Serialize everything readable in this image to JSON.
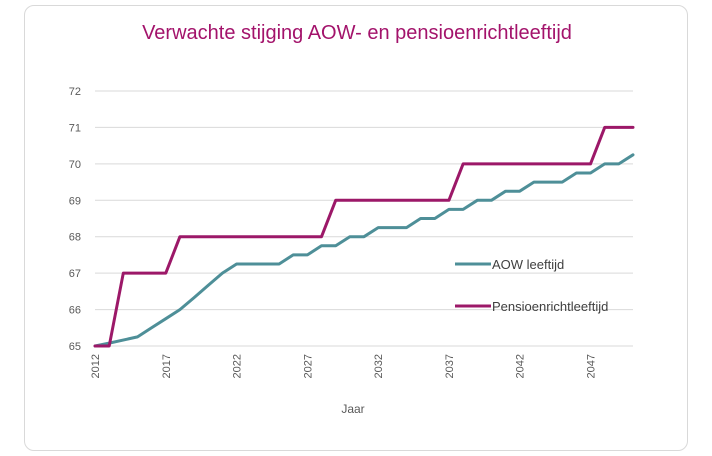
{
  "chart_data": {
    "type": "line",
    "title": "Verwachte stijging  AOW- en pensioenrichtleeftijd",
    "xlabel": "Jaar",
    "ylabel": "",
    "xlim": [
      2012,
      2050
    ],
    "ylim": [
      65,
      72
    ],
    "x_ticks": [
      "2012",
      "2017",
      "2022",
      "2027",
      "2032",
      "2037",
      "2042",
      "2047"
    ],
    "y_ticks": [
      "65",
      "66",
      "67",
      "68",
      "69",
      "70",
      "71",
      "72"
    ],
    "grid": true,
    "legend_position": "right-center",
    "series": [
      {
        "name": "AOW leeftijd",
        "color": "#4e8f98",
        "shape": "linear",
        "points": [
          [
            2012,
            65.0
          ],
          [
            2013,
            65.08
          ],
          [
            2015,
            65.25
          ],
          [
            2016,
            65.5
          ],
          [
            2017,
            65.75
          ],
          [
            2018,
            66.0
          ],
          [
            2019,
            66.33
          ],
          [
            2020,
            66.67
          ],
          [
            2021,
            67.0
          ],
          [
            2022,
            67.25
          ],
          [
            2025,
            67.25
          ],
          [
            2026,
            67.5
          ],
          [
            2027,
            67.5
          ],
          [
            2028,
            67.75
          ],
          [
            2029,
            67.75
          ],
          [
            2030,
            68.0
          ],
          [
            2031,
            68.0
          ],
          [
            2032,
            68.25
          ],
          [
            2034,
            68.25
          ],
          [
            2035,
            68.5
          ],
          [
            2036,
            68.5
          ],
          [
            2037,
            68.75
          ],
          [
            2038,
            68.75
          ],
          [
            2039,
            69.0
          ],
          [
            2040,
            69.0
          ],
          [
            2041,
            69.25
          ],
          [
            2042,
            69.25
          ],
          [
            2043,
            69.5
          ],
          [
            2045,
            69.5
          ],
          [
            2046,
            69.75
          ],
          [
            2047,
            69.75
          ],
          [
            2048,
            70.0
          ],
          [
            2049,
            70.0
          ],
          [
            2050,
            70.25
          ]
        ]
      },
      {
        "name": "Pensioenrichtleeftijd",
        "color": "#9c1868",
        "shape": "step",
        "points": [
          [
            2012,
            65
          ],
          [
            2013,
            65
          ],
          [
            2014,
            67
          ],
          [
            2017,
            67
          ],
          [
            2018,
            68
          ],
          [
            2028,
            68
          ],
          [
            2029,
            69
          ],
          [
            2037,
            69
          ],
          [
            2038,
            70
          ],
          [
            2047,
            70
          ],
          [
            2048,
            71
          ],
          [
            2050,
            71
          ]
        ]
      }
    ]
  }
}
